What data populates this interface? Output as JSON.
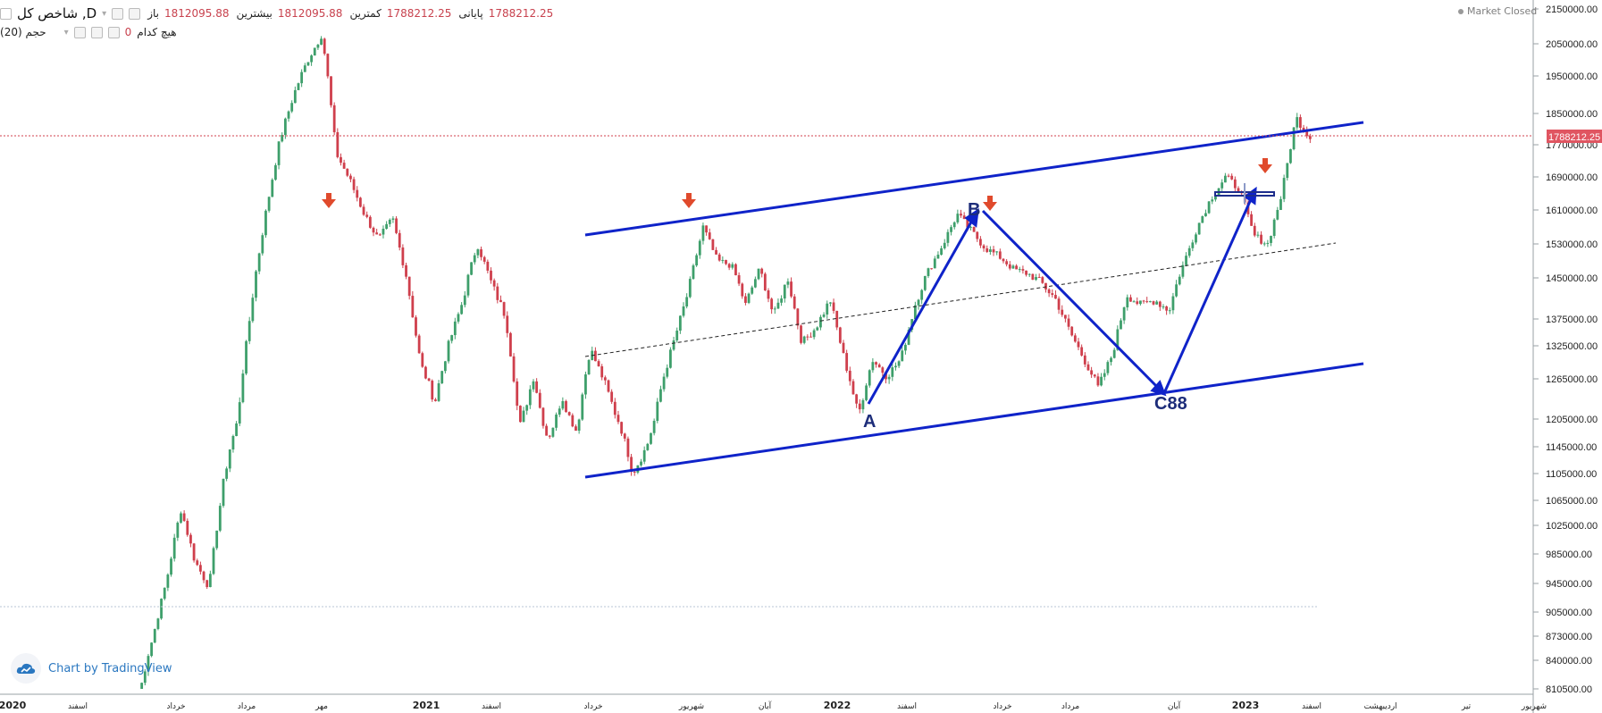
{
  "legend": {
    "symbol": "شاخص کل ,D",
    "open_label": "باز",
    "open_value": "1812095.88",
    "high_label": "بیشترین",
    "high_value": "1812095.88",
    "low_label": "کمترین",
    "low_value": "1788212.25",
    "close_label": "پایانی",
    "close_value": "1788212.25",
    "volume_label": "حجم (20)",
    "volume_text": "هیچ کدام",
    "volume_value": "0"
  },
  "market_status": "Market Closed",
  "watermark": "Chart by TradingView",
  "colors": {
    "up": "#3e9f6b",
    "down": "#cf3f4c",
    "channel": "#0f23c9",
    "arrow": "#e04a2c",
    "price_label": "#e05561"
  },
  "chart_data": {
    "type": "line",
    "title": "شاخص کل",
    "y_axis": {
      "range": [
        794000,
        2160000
      ],
      "ticks": [
        "2150000.00",
        "2050000.00",
        "1950000.00",
        "1850000.00",
        "1770000.00",
        "1690000.00",
        "1610000.00",
        "1530000.00",
        "1450000.00",
        "1375000.00",
        "1325000.00",
        "1265000.00",
        "1205000.00",
        "1145000.00",
        "1105000.00",
        "1065000.00",
        "1025000.00",
        "985000.00",
        "945000.00",
        "905000.00",
        "873000.00",
        "840000.00",
        "810500.00"
      ],
      "last_price_label": "1788212.25"
    },
    "x_axis": {
      "ticks": [
        "2020",
        "اسفند",
        "خرداد",
        "مرداد",
        "مهر",
        "2021",
        "اسفند",
        "خرداد",
        "شهریور",
        "آبان",
        "2022",
        "اسفند",
        "خرداد",
        "مرداد",
        "آبان",
        "2023",
        "اسفند",
        "اردیبهشت",
        "تیر",
        "شهریور"
      ]
    },
    "series": [
      {
        "values": [
          800000,
          870000,
          950000,
          1050000,
          975000,
          940000,
          1090000,
          1200000,
          1400000,
          1600000,
          1780000,
          1900000,
          2000000,
          2080000,
          1750000,
          1680000,
          1600000,
          1540000,
          1590000,
          1450000,
          1290000,
          1230000,
          1330000,
          1410000,
          1530000,
          1440000,
          1380000,
          1190000,
          1270000,
          1160000,
          1240000,
          1180000,
          1320000,
          1260000,
          1200000,
          1105000,
          1145000,
          1250000,
          1340000,
          1430000,
          1570000,
          1490000,
          1480000,
          1400000,
          1470000,
          1380000,
          1450000,
          1330000,
          1360000,
          1410000,
          1300000,
          1210000,
          1300000,
          1270000,
          1300000,
          1400000,
          1470000,
          1530000,
          1600000,
          1560000,
          1520000,
          1500000,
          1470000,
          1460000,
          1440000,
          1410000,
          1350000,
          1300000,
          1250000,
          1310000,
          1420000,
          1400000,
          1410000,
          1390000,
          1480000,
          1570000,
          1640000,
          1690000,
          1660000,
          1550000,
          1530000,
          1650000,
          1840000,
          1788212
        ]
      }
    ],
    "annotations": [
      "A",
      "B",
      "C88"
    ]
  }
}
